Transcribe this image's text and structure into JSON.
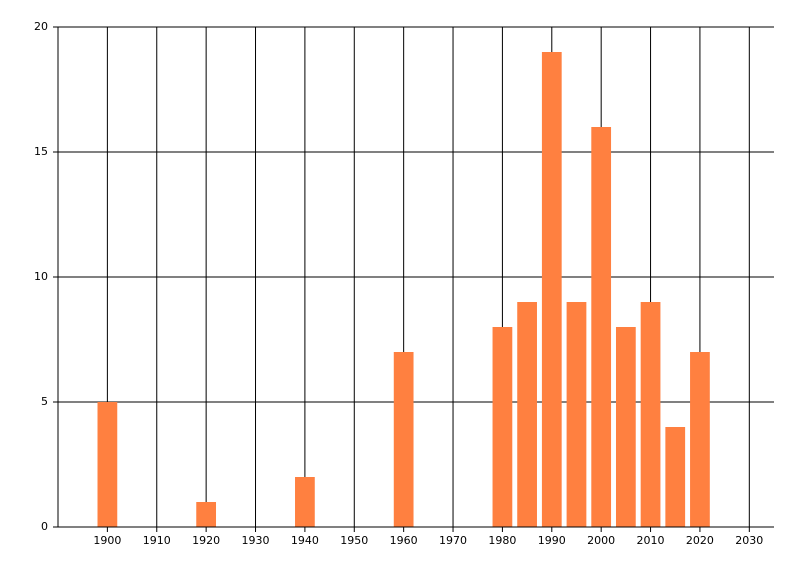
{
  "chart_data": {
    "type": "bar",
    "x": [
      1900,
      1920,
      1940,
      1960,
      1980,
      1985,
      1990,
      1995,
      2000,
      2005,
      2010,
      2015,
      2020
    ],
    "values": [
      5,
      1,
      2,
      7,
      8,
      9,
      19,
      9,
      16,
      8,
      9,
      4,
      7
    ],
    "color": "#ff8040",
    "xlim": [
      1890,
      2035
    ],
    "xticks": [
      1900,
      1910,
      1920,
      1930,
      1940,
      1950,
      1960,
      1970,
      1980,
      1990,
      2000,
      2010,
      2020,
      2030
    ],
    "ylim": [
      0,
      20
    ],
    "yticks": [
      0,
      5,
      10,
      15,
      20
    ],
    "grid": true
  }
}
